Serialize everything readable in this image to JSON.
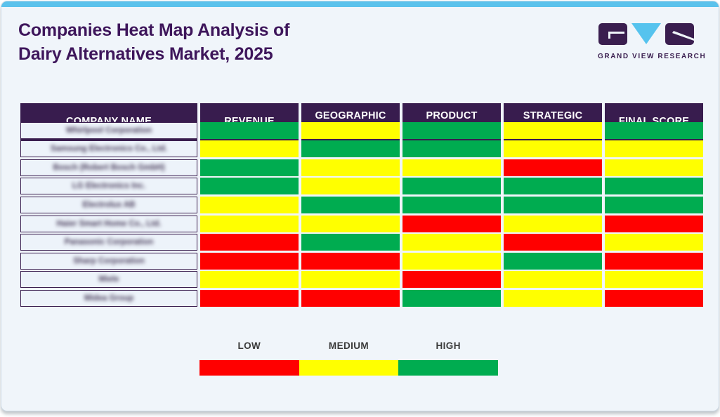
{
  "title": {
    "line1": "Companies Heat Map Analysis of",
    "line2": "Dairy Alternatives Market, 2025"
  },
  "logo": {
    "brand": "GRAND VIEW RESEARCH"
  },
  "colors": {
    "low": "#FF0000",
    "medium": "#FFFF00",
    "high": "#00AC50",
    "header_bg": "#381C4E",
    "accent_strip": "#5BC2EC",
    "company_underline": "#5CC9F5",
    "title_purple": "#3E165B",
    "card_bg": "#F0F5FA"
  },
  "table": {
    "company_names_blurred": true,
    "columns": [
      "COMPANY NAME",
      "REVENUE",
      "GEOGRAPHIC PRESENCE",
      "PRODUCT POTFOLIO",
      "STRATEGIC INTIATIVES",
      "FINAL SCORE"
    ],
    "rows": [
      {
        "company": "Whirlpool Corporation",
        "scores": [
          "high",
          "medium",
          "high",
          "medium",
          "high"
        ]
      },
      {
        "company": "Samsung Electronics Co., Ltd.",
        "scores": [
          "medium",
          "high",
          "high",
          "medium",
          "medium"
        ]
      },
      {
        "company": "Bosch (Robert Bosch GmbH)",
        "scores": [
          "high",
          "medium",
          "medium",
          "low",
          "medium"
        ]
      },
      {
        "company": "LG Electronics Inc.",
        "scores": [
          "high",
          "medium",
          "high",
          "high",
          "high"
        ]
      },
      {
        "company": "Electrolux AB",
        "scores": [
          "medium",
          "high",
          "high",
          "high",
          "high"
        ]
      },
      {
        "company": "Haier Smart Home Co., Ltd.",
        "scores": [
          "medium",
          "medium",
          "low",
          "medium",
          "low"
        ]
      },
      {
        "company": "Panasonic Corporation",
        "scores": [
          "low",
          "high",
          "medium",
          "low",
          "medium"
        ]
      },
      {
        "company": "Sharp Corporation",
        "scores": [
          "low",
          "low",
          "medium",
          "high",
          "low"
        ]
      },
      {
        "company": "Miele",
        "scores": [
          "medium",
          "medium",
          "low",
          "medium",
          "medium"
        ]
      },
      {
        "company": "Midea Group",
        "scores": [
          "low",
          "low",
          "high",
          "medium",
          "low"
        ]
      }
    ]
  },
  "legend": {
    "items": [
      {
        "label": "LOW",
        "level": "low",
        "color": "#FF0000"
      },
      {
        "label": "MEDIUM",
        "level": "medium",
        "color": "#FFFF00"
      },
      {
        "label": "HIGH",
        "level": "high",
        "color": "#00AC50"
      }
    ]
  },
  "chart_data": {
    "type": "heatmap",
    "title": "Companies Heat Map Analysis of Dairy Alternatives Market, 2025",
    "columns": [
      "REVENUE",
      "GEOGRAPHIC PRESENCE",
      "PRODUCT POTFOLIO",
      "STRATEGIC INTIATIVES",
      "FINAL SCORE"
    ],
    "rows": [
      "Whirlpool Corporation",
      "Samsung Electronics Co., Ltd.",
      "Bosch (Robert Bosch GmbH)",
      "LG Electronics Inc.",
      "Electrolux AB",
      "Haier Smart Home Co., Ltd.",
      "Panasonic Corporation",
      "Sharp Corporation",
      "Miele",
      "Midea Group"
    ],
    "values": [
      [
        "high",
        "medium",
        "high",
        "medium",
        "high"
      ],
      [
        "medium",
        "high",
        "high",
        "medium",
        "medium"
      ],
      [
        "high",
        "medium",
        "medium",
        "low",
        "medium"
      ],
      [
        "high",
        "medium",
        "high",
        "high",
        "high"
      ],
      [
        "medium",
        "high",
        "high",
        "high",
        "high"
      ],
      [
        "medium",
        "medium",
        "low",
        "medium",
        "low"
      ],
      [
        "low",
        "high",
        "medium",
        "low",
        "medium"
      ],
      [
        "low",
        "low",
        "medium",
        "high",
        "low"
      ],
      [
        "medium",
        "medium",
        "low",
        "medium",
        "medium"
      ],
      [
        "low",
        "low",
        "high",
        "medium",
        "low"
      ]
    ],
    "scale": {
      "low": "red (#FF0000)",
      "medium": "yellow (#FFFF00)",
      "high": "green (#00AC50)"
    },
    "legend_position": "bottom",
    "legend_labels": [
      "LOW",
      "MEDIUM",
      "HIGH"
    ]
  }
}
